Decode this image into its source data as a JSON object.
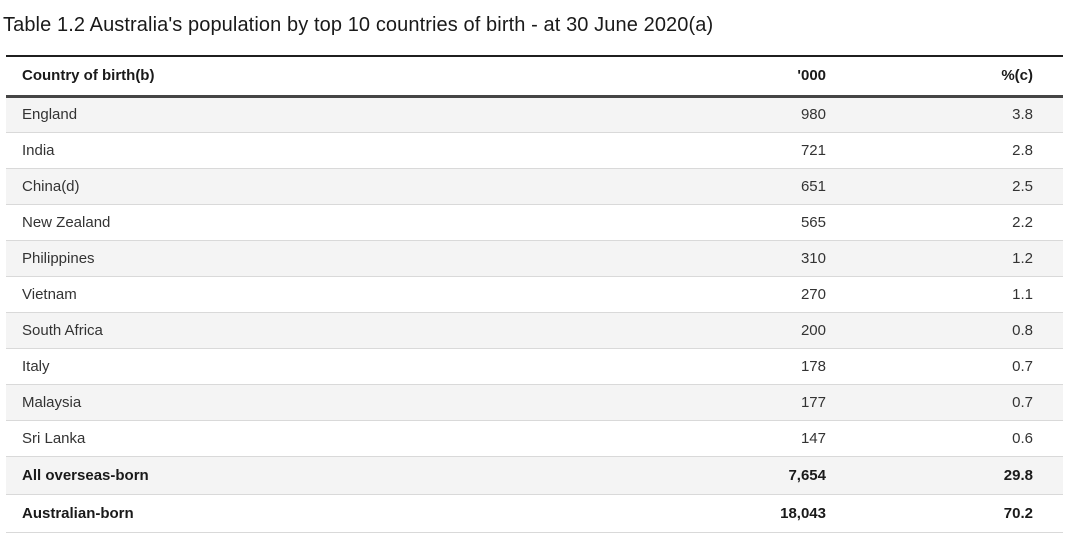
{
  "title": "Table 1.2 Australia's population by top 10 countries of birth - at 30 June 2020(a)",
  "table": {
    "columns": [
      "Country of birth(b)",
      "'000",
      "%(c)"
    ],
    "rows": [
      {
        "country": "England",
        "thousands": "980",
        "percent": "3.8"
      },
      {
        "country": "India",
        "thousands": "721",
        "percent": "2.8"
      },
      {
        "country": "China(d)",
        "thousands": "651",
        "percent": "2.5"
      },
      {
        "country": "New Zealand",
        "thousands": "565",
        "percent": "2.2"
      },
      {
        "country": "Philippines",
        "thousands": "310",
        "percent": "1.2"
      },
      {
        "country": "Vietnam",
        "thousands": "270",
        "percent": "1.1"
      },
      {
        "country": "South Africa",
        "thousands": "200",
        "percent": "0.8"
      },
      {
        "country": "Italy",
        "thousands": "178",
        "percent": "0.7"
      },
      {
        "country": "Malaysia",
        "thousands": "177",
        "percent": "0.7"
      },
      {
        "country": "Sri Lanka",
        "thousands": "147",
        "percent": "0.6"
      },
      {
        "country": "All overseas-born",
        "thousands": "7,654",
        "percent": "29.8"
      },
      {
        "country": "Australian-born",
        "thousands": "18,043",
        "percent": "70.2"
      }
    ]
  },
  "chart_data": {
    "type": "table",
    "title": "Table 1.2 Australia's population by top 10 countries of birth - at 30 June 2020(a)",
    "columns": [
      "Country of birth(b)",
      "'000",
      "%(c)"
    ],
    "rows": [
      [
        "England",
        980,
        3.8
      ],
      [
        "India",
        721,
        2.8
      ],
      [
        "China(d)",
        651,
        2.5
      ],
      [
        "New Zealand",
        565,
        2.2
      ],
      [
        "Philippines",
        310,
        1.2
      ],
      [
        "Vietnam",
        270,
        1.1
      ],
      [
        "South Africa",
        200,
        0.8
      ],
      [
        "Italy",
        178,
        0.7
      ],
      [
        "Malaysia",
        177,
        0.7
      ],
      [
        "Sri Lanka",
        147,
        0.6
      ],
      [
        "All overseas-born",
        7654,
        29.8
      ],
      [
        "Australian-born",
        18043,
        70.2
      ]
    ],
    "summary_row_labels": [
      "All overseas-born",
      "Australian-born"
    ]
  },
  "colors": {
    "top_rule": "#1f1f1f",
    "header_rule": "#454545",
    "row_separator": "#d9d9d9",
    "row_shading": "#f4f4f4",
    "text": "#333333",
    "text_strong": "#1a1a1a"
  }
}
